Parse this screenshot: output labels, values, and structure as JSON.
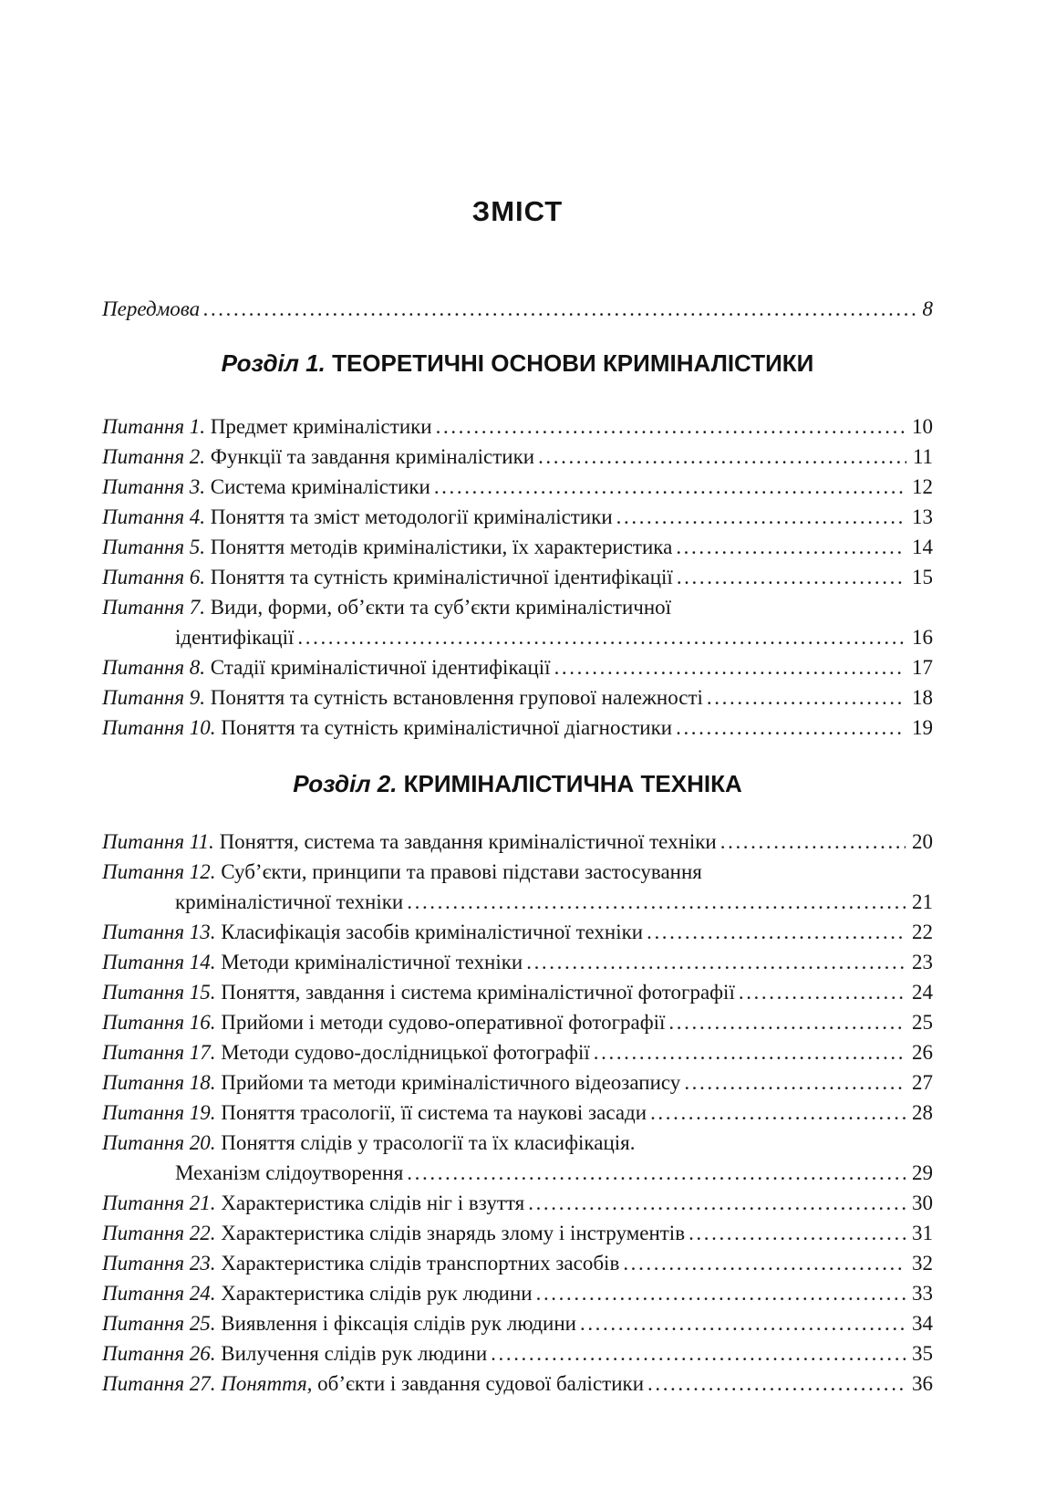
{
  "colors": {
    "background": "#ffffff",
    "text": "#151515"
  },
  "page_title": "ЗМІСТ",
  "preface": {
    "label": "Передмова",
    "page": "8"
  },
  "sections": [
    {
      "heading_prefix": "Розділ 1.",
      "heading_title": "ТЕОРЕТИЧНІ ОСНОВИ КРИМІНАЛІСТИКИ",
      "entries": [
        {
          "prefix": "Питання 1.",
          "title": "Предмет криміналістики",
          "page": "10"
        },
        {
          "prefix": "Питання 2.",
          "title": "Функції та завдання криміналістики",
          "page": "11"
        },
        {
          "prefix": "Питання 3.",
          "title": "Система криміналістики",
          "page": "12"
        },
        {
          "prefix": "Питання 4.",
          "title": "Поняття та зміст методології криміналістики",
          "page": "13"
        },
        {
          "prefix": "Питання 5.",
          "title": "Поняття методів криміналістики, їх характеристика",
          "page": "14"
        },
        {
          "prefix": "Питання 6.",
          "title": "Поняття та сутність криміналістичної ідентифікації",
          "page": "15"
        },
        {
          "prefix": "Питання 7.",
          "title": "Види, форми, об’єкти та суб’єкти криміналістичної",
          "title2": "ідентифікації",
          "page": "16"
        },
        {
          "prefix": "Питання 8.",
          "title": "Стадії криміналістичної ідентифікації",
          "page": "17"
        },
        {
          "prefix": "Питання 9.",
          "title": "Поняття та сутність встановлення групової належності",
          "page": "18"
        },
        {
          "prefix": "Питання 10.",
          "title": "Поняття та сутність криміналістичної діагностики",
          "page": "19"
        }
      ]
    },
    {
      "heading_prefix": "Розділ 2.",
      "heading_title": "КРИМІНАЛІСТИЧНА ТЕХНІКА",
      "entries": [
        {
          "prefix": "Питання 11.",
          "title": "Поняття, система та завдання криміналістичної техніки",
          "page": "20"
        },
        {
          "prefix": "Питання 12.",
          "title": "Суб’єкти, принципи та правові підстави застосування",
          "title2": "криміналістичної техніки",
          "page": "21"
        },
        {
          "prefix": "Питання 13.",
          "title": "Класифікація засобів криміналістичної техніки",
          "page": "22"
        },
        {
          "prefix": "Питання 14.",
          "title": "Методи криміналістичної техніки",
          "page": "23"
        },
        {
          "prefix": "Питання 15.",
          "title": "Поняття, завдання і система криміналістичної фотографії",
          "page": "24"
        },
        {
          "prefix": "Питання 16.",
          "title": "Прийоми і методи судово-оперативної фотографії",
          "page": "25"
        },
        {
          "prefix": "Питання 17.",
          "title": "Методи судово-дослідницької фотографії",
          "page": "26"
        },
        {
          "prefix": "Питання 18.",
          "title": "Прийоми та методи криміналістичного відеозапису",
          "page": "27"
        },
        {
          "prefix": "Питання 19.",
          "title": "Поняття трасології, її система та наукові засади",
          "page": "28"
        },
        {
          "prefix": "Питання 20.",
          "title": "Поняття слідів у трасології та їх класифікація.",
          "title2": "Механізм слідоутворення",
          "page": "29"
        },
        {
          "prefix": "Питання 21.",
          "title": "Характеристика слідів ніг і взуття",
          "page": "30"
        },
        {
          "prefix": "Питання 22.",
          "title": "Характеристика слідів знарядь злому і інструментів",
          "page": "31"
        },
        {
          "prefix": "Питання 23.",
          "title": "Характеристика слідів транспортних засобів",
          "page": "32"
        },
        {
          "prefix": "Питання 24.",
          "title": "Характеристика слідів рук людини",
          "page": "33"
        },
        {
          "prefix": "Питання 25.",
          "title": "Виявлення і фіксація слідів рук людини",
          "page": "34"
        },
        {
          "prefix": "Питання 26.",
          "title": "Вилучення слідів рук людини",
          "page": "35"
        },
        {
          "prefix": "Питання 27.",
          "title_italic": "Поняття,",
          "title": " об’єкти і завдання судової балістики",
          "page": "36"
        }
      ]
    }
  ]
}
